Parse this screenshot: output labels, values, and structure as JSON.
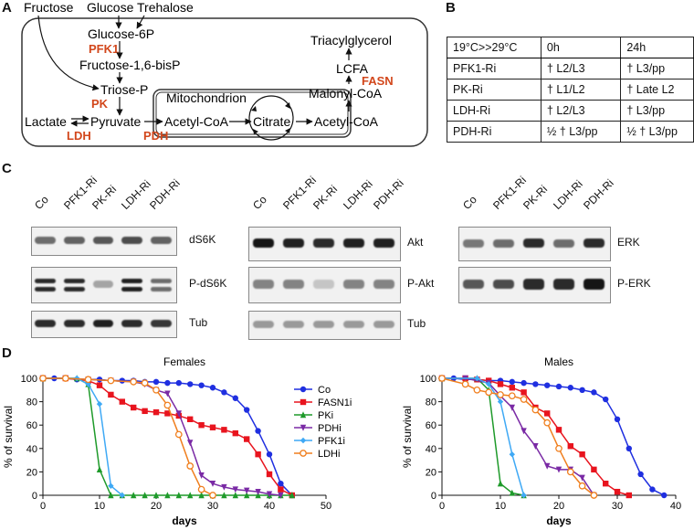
{
  "panels": {
    "a": "A",
    "b": "B",
    "c": "C",
    "d": "D"
  },
  "pathway": {
    "top_fructose": "Fructose",
    "top_glucose": "Glucose",
    "top_trehalose": "Trehalose",
    "glucose6p": "Glucose-6P",
    "f16bp": "Fructose-1,6-bisP",
    "triose": "Triose-P",
    "lactate": "Lactate",
    "pyruvate": "Pyruvate",
    "acetylcoa_mito": "Acetyl-CoA",
    "citrate": "Citrate",
    "acetylcoa_cyto": "Acetyl-CoA",
    "malonyl": "Malonyl-CoA",
    "lcfa": "LCFA",
    "tag": "Triacylglycerol",
    "mito": "Mitochondrion",
    "enz_pfk1": "PFK1",
    "enz_pk": "PK",
    "enz_ldh": "LDH",
    "enz_pdh": "PDH",
    "enz_fasn": "FASN",
    "enzyme_color": "#d2471c"
  },
  "table": {
    "header": [
      "19°C>>29°C",
      "0h",
      "24h"
    ],
    "rows": [
      [
        "PFK1-Ri",
        "† L2/L3",
        "† L3/pp"
      ],
      [
        "PK-Ri",
        "† L1/L2",
        "† Late L2"
      ],
      [
        "LDH-Ri",
        "† L2/L3",
        "† L3/pp"
      ],
      [
        "PDH-Ri",
        "½ † L3/pp",
        "½ † L3/pp"
      ]
    ]
  },
  "blots": {
    "lanes_left": [
      "Co",
      "PFK1-Ri",
      "PK-Ri",
      "LDH-Ri",
      "PDH-Ri"
    ],
    "lanes_mid": [
      "Co",
      "PFK1-Ri",
      "PK-Ri",
      "LDH-Ri",
      "PDH-Ri"
    ],
    "lanes_right": [
      "Co",
      "PFK1-Ri",
      "PK-Ri",
      "LDH-Ri",
      "PDH-Ri"
    ],
    "left_labels": [
      "dS6K",
      "P-dS6K",
      "Tub"
    ],
    "mid_labels": [
      "Akt",
      "P-Akt",
      "Tub"
    ],
    "right_labels": [
      "ERK",
      "P-ERK"
    ]
  },
  "chart_data": [
    {
      "type": "line",
      "title": "Females",
      "xlabel": "days",
      "ylabel": "% of survival",
      "xlim": [
        0,
        50
      ],
      "ylim": [
        0,
        100
      ],
      "xticks": [
        0,
        10,
        20,
        30,
        40,
        50
      ],
      "yticks": [
        0,
        20,
        40,
        60,
        80,
        100
      ],
      "series": [
        {
          "name": "Co",
          "color": "#1f2fe0",
          "marker": "circle",
          "x": [
            0,
            2,
            4,
            6,
            8,
            10,
            12,
            14,
            16,
            18,
            20,
            22,
            24,
            26,
            28,
            30,
            32,
            34,
            36,
            38,
            40,
            42,
            44
          ],
          "y": [
            100,
            100,
            100,
            99,
            99,
            99,
            98,
            98,
            98,
            97,
            97,
            96,
            96,
            95,
            94,
            92,
            88,
            83,
            73,
            55,
            35,
            10,
            0
          ]
        },
        {
          "name": "FASN1i",
          "color": "#e8141e",
          "marker": "square",
          "x": [
            0,
            4,
            8,
            10,
            12,
            14,
            16,
            18,
            20,
            22,
            24,
            26,
            28,
            30,
            32,
            34,
            36,
            38,
            40,
            42,
            44
          ],
          "y": [
            100,
            100,
            98,
            94,
            86,
            80,
            75,
            72,
            71,
            70,
            68,
            65,
            60,
            58,
            56,
            53,
            48,
            35,
            18,
            5,
            0
          ]
        },
        {
          "name": "PKi",
          "color": "#1e9a2a",
          "marker": "triangle",
          "x": [
            0,
            6,
            8,
            10,
            12,
            14,
            16,
            18,
            20,
            22,
            24,
            26,
            28,
            30,
            32,
            34,
            36,
            38,
            40,
            42,
            44
          ],
          "y": [
            100,
            100,
            95,
            22,
            0,
            0,
            0,
            0,
            0,
            0,
            0,
            0,
            0,
            0,
            0,
            0,
            0,
            0,
            0,
            0,
            0
          ]
        },
        {
          "name": "PDHi",
          "color": "#7a2aa5",
          "marker": "triangle-down",
          "x": [
            0,
            4,
            8,
            12,
            16,
            18,
            20,
            22,
            24,
            26,
            28,
            30,
            32,
            34,
            36,
            38,
            40,
            42
          ],
          "y": [
            100,
            100,
            99,
            98,
            97,
            95,
            90,
            87,
            70,
            45,
            17,
            10,
            7,
            5,
            4,
            3,
            1,
            0
          ]
        },
        {
          "name": "PFK1i",
          "color": "#3fa9f5",
          "marker": "diamond",
          "x": [
            0,
            6,
            8,
            10,
            12,
            14
          ],
          "y": [
            100,
            100,
            95,
            78,
            8,
            0
          ]
        },
        {
          "name": "LDHi",
          "color": "#f07f1e",
          "marker": "circle-open",
          "x": [
            0,
            4,
            8,
            12,
            16,
            18,
            20,
            22,
            24,
            26,
            28,
            30
          ],
          "y": [
            100,
            100,
            99,
            98,
            97,
            96,
            90,
            77,
            52,
            25,
            5,
            0
          ]
        }
      ]
    },
    {
      "type": "line",
      "title": "Males",
      "xlabel": "days",
      "ylabel": "% of survival",
      "xlim": [
        0,
        40
      ],
      "ylim": [
        0,
        100
      ],
      "xticks": [
        0,
        10,
        20,
        30,
        40
      ],
      "yticks": [
        0,
        20,
        40,
        60,
        80,
        100
      ],
      "series": [
        {
          "name": "Co",
          "color": "#1f2fe0",
          "marker": "circle",
          "x": [
            0,
            2,
            4,
            6,
            8,
            10,
            12,
            14,
            16,
            18,
            20,
            22,
            24,
            26,
            28,
            30,
            32,
            34,
            36,
            38
          ],
          "y": [
            100,
            100,
            99,
            99,
            98,
            98,
            97,
            96,
            95,
            94,
            93,
            92,
            90,
            88,
            82,
            65,
            40,
            18,
            5,
            0
          ]
        },
        {
          "name": "FASN1i",
          "color": "#e8141e",
          "marker": "square",
          "x": [
            0,
            4,
            6,
            8,
            10,
            12,
            14,
            16,
            18,
            20,
            22,
            24,
            26,
            28,
            30,
            32
          ],
          "y": [
            100,
            100,
            99,
            98,
            95,
            92,
            88,
            75,
            70,
            56,
            42,
            35,
            22,
            10,
            3,
            0
          ]
        },
        {
          "name": "PKi",
          "color": "#1e9a2a",
          "marker": "triangle",
          "x": [
            0,
            6,
            8,
            10,
            12,
            14
          ],
          "y": [
            100,
            100,
            90,
            10,
            2,
            0
          ]
        },
        {
          "name": "PDHi",
          "color": "#7a2aa5",
          "marker": "triangle-down",
          "x": [
            0,
            4,
            8,
            10,
            12,
            14,
            16,
            18,
            20,
            22,
            24,
            26
          ],
          "y": [
            100,
            100,
            96,
            85,
            75,
            55,
            42,
            25,
            22,
            22,
            15,
            0
          ]
        },
        {
          "name": "PFK1i",
          "color": "#3fa9f5",
          "marker": "diamond",
          "x": [
            0,
            6,
            8,
            10,
            12,
            14
          ],
          "y": [
            100,
            100,
            95,
            80,
            35,
            0
          ]
        },
        {
          "name": "LDHi",
          "color": "#f07f1e",
          "marker": "circle-open",
          "x": [
            0,
            4,
            6,
            8,
            10,
            12,
            14,
            16,
            18,
            20,
            22,
            24,
            26
          ],
          "y": [
            100,
            95,
            90,
            88,
            86,
            85,
            82,
            73,
            62,
            40,
            20,
            8,
            0
          ]
        }
      ]
    }
  ]
}
